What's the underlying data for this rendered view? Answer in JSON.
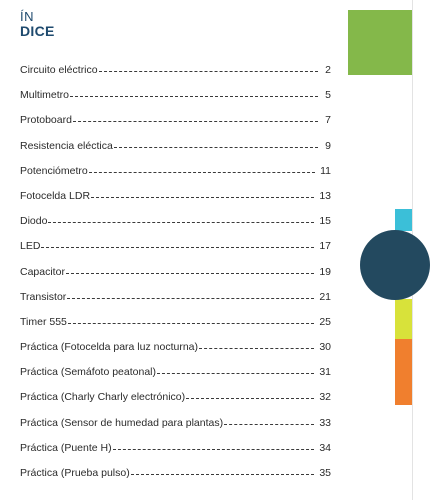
{
  "heading": {
    "line1": "ÍN",
    "line2": "DICE"
  },
  "toc": [
    {
      "label": "Circuito eléctrico",
      "page": "2"
    },
    {
      "label": "Multimetro",
      "page": "5"
    },
    {
      "label": "Protoboard",
      "page": "7"
    },
    {
      "label": "Resistencia eléctica",
      "page": "9"
    },
    {
      "label": "Potenciómetro",
      "page": "11"
    },
    {
      "label": "Fotocelda LDR",
      "page": "13"
    },
    {
      "label": "Diodo",
      "page": "15"
    },
    {
      "label": "LED",
      "page": "17"
    },
    {
      "label": "Capacitor",
      "page": "19"
    },
    {
      "label": "Transistor",
      "page": "21"
    },
    {
      "label": "Timer 555",
      "page": "25"
    },
    {
      "label": "Práctica (Fotocelda para luz nocturna)",
      "page": "30"
    },
    {
      "label": "Práctica (Semáfoto peatonal)",
      "page": "31"
    },
    {
      "label": "Práctica (Charly Charly electrónico)",
      "page": "32"
    },
    {
      "label": "Práctica (Sensor de humedad para plantas)",
      "page": "33"
    },
    {
      "label": "Práctica (Puente H)",
      "page": "34"
    },
    {
      "label": "Práctica (Prueba pulso)",
      "page": "35"
    }
  ],
  "colors": {
    "heading": "#1e4a6e",
    "green": "#84b84a",
    "cyan": "#3bbfd8",
    "navy": "#23495f",
    "lime": "#d8e23a",
    "orange": "#f07f2e"
  }
}
